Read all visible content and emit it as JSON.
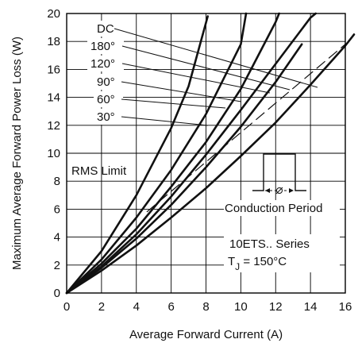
{
  "chart_data": {
    "type": "line",
    "xlabel": "Average Forward Current (A)",
    "ylabel": "Maximum Average Forward Power Loss (W)",
    "xlim": [
      0,
      16
    ],
    "ylim": [
      0,
      20
    ],
    "xticks": [
      0,
      2,
      4,
      6,
      8,
      10,
      12,
      14,
      16
    ],
    "yticks": [
      0,
      2,
      4,
      6,
      8,
      10,
      12,
      14,
      16,
      18,
      20
    ],
    "grid": true,
    "series": [
      {
        "name": "30°",
        "x": [
          0,
          2,
          4,
          6,
          8,
          10,
          12,
          14,
          16,
          16.5
        ],
        "y": [
          0,
          1.6,
          3.4,
          5.4,
          7.5,
          9.8,
          12.2,
          14.9,
          17.7,
          18.5
        ]
      },
      {
        "name": "60°",
        "x": [
          0,
          2,
          4,
          6,
          8,
          10,
          12,
          13.5
        ],
        "y": [
          0,
          1.8,
          3.9,
          6.3,
          9.0,
          11.9,
          15.1,
          17.8
        ]
      },
      {
        "name": "90°",
        "x": [
          0,
          2,
          4,
          6,
          8,
          10,
          12,
          14,
          14.3
        ],
        "y": [
          0,
          1.9,
          4.2,
          6.9,
          9.9,
          13.1,
          16.4,
          19.7,
          20
        ]
      },
      {
        "name": "120°",
        "x": [
          0,
          2,
          4,
          6,
          8,
          10,
          12,
          12.2
        ],
        "y": [
          0,
          2.1,
          4.6,
          7.6,
          10.8,
          14.6,
          19.4,
          20
        ]
      },
      {
        "name": "180°",
        "x": [
          0,
          2,
          4,
          6,
          8,
          10,
          10.3
        ],
        "y": [
          0,
          2.4,
          5.4,
          8.8,
          12.8,
          17.8,
          20
        ]
      },
      {
        "name": "DC",
        "x": [
          0,
          2,
          4,
          6,
          7,
          8.1
        ],
        "y": [
          0,
          3.0,
          7.0,
          11.8,
          14.8,
          19.8
        ]
      }
    ],
    "rms_limit": {
      "x": [
        4.6,
        16
      ],
      "y": [
        5.8,
        17.8
      ]
    },
    "annotations": {
      "series_labels": [
        "DC",
        "180°",
        "120°",
        "90°",
        "60°",
        "30°"
      ],
      "rms_limit": "RMS Limit",
      "conduction_period": "Conduction Period",
      "series_name": "10ETS.. Series",
      "tj_prefix": "T",
      "tj_sub": "J",
      "tj_value": " = 150°C"
    }
  }
}
